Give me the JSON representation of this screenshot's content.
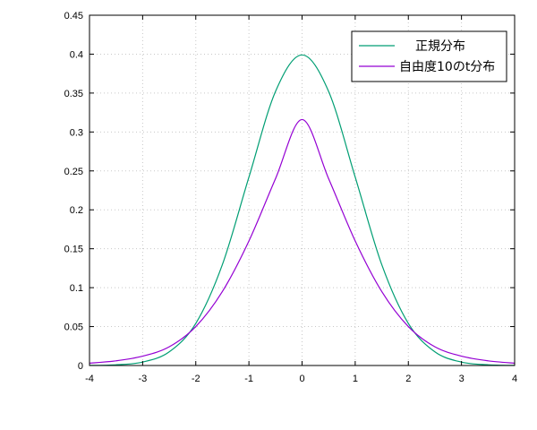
{
  "chart_data": {
    "type": "line",
    "xlim": [
      -4,
      4
    ],
    "ylim": [
      0,
      0.45
    ],
    "x_ticks": [
      "-4",
      "-3",
      "-2",
      "-1",
      "0",
      "1",
      "2",
      "3",
      "4"
    ],
    "y_ticks": [
      "0",
      "0.05",
      "0.1",
      "0.15",
      "0.2",
      "0.25",
      "0.3",
      "0.35",
      "0.4",
      "0.45"
    ],
    "grid": true,
    "legend_position": "top-right",
    "series": [
      {
        "name": "正規分布",
        "color": "#009e73",
        "x": [
          -4,
          -3.5,
          -3,
          -2.5,
          -2,
          -1.5,
          -1,
          -0.5,
          0,
          0.5,
          1,
          1.5,
          2,
          2.5,
          3,
          3.5,
          4
        ],
        "y": [
          0.0001,
          0.0009,
          0.0044,
          0.0175,
          0.054,
          0.1295,
          0.242,
          0.352,
          0.399,
          0.352,
          0.242,
          0.1295,
          0.054,
          0.0175,
          0.0044,
          0.0009,
          0.0001
        ]
      },
      {
        "name": "自由度10のt分布",
        "color": "#9400d3",
        "x": [
          -4,
          -3.5,
          -3,
          -2.5,
          -2,
          -1.5,
          -1,
          -0.5,
          0,
          0.5,
          1,
          1.5,
          2,
          2.5,
          3,
          3.5,
          4
        ],
        "y": [
          0.003,
          0.006,
          0.012,
          0.024,
          0.05,
          0.095,
          0.16,
          0.24,
          0.316,
          0.24,
          0.16,
          0.095,
          0.05,
          0.024,
          0.012,
          0.006,
          0.003
        ]
      }
    ]
  }
}
